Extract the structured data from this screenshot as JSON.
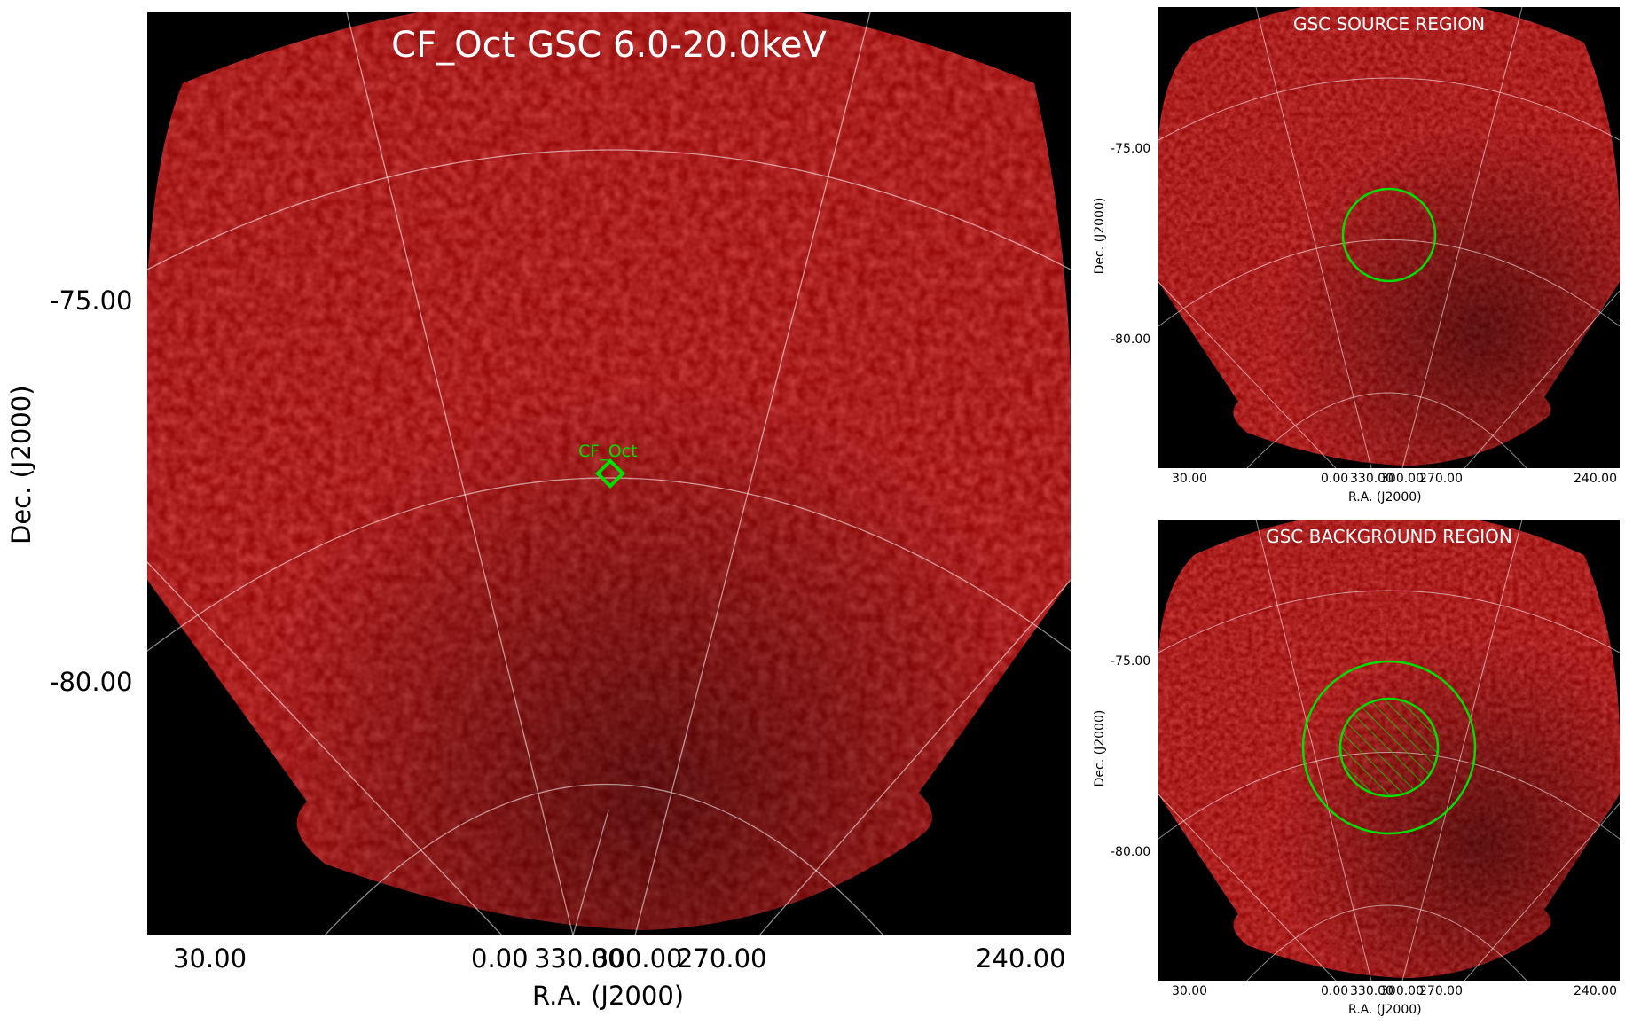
{
  "main": {
    "title": "CF_Oct GSC 6.0-20.0keV",
    "source_label": "CF_Oct",
    "xlabel": "R.A. (J2000)",
    "ylabel": "Dec. (J2000)",
    "xticks": [
      "30.00",
      "0.00",
      "330.00",
      "300.00",
      "270.00",
      "240.00"
    ],
    "yticks": [
      "-75.00",
      "-80.00"
    ]
  },
  "source_panel": {
    "title": "GSC SOURCE REGION",
    "xlabel": "R.A. (J2000)",
    "ylabel": "Dec. (J2000)",
    "xticks": [
      "30.00",
      "0.00",
      "330.00",
      "300.00",
      "270.00",
      "240.00"
    ],
    "yticks": [
      "-75.00",
      "-80.00"
    ]
  },
  "background_panel": {
    "title": "GSC BACKGROUND REGION",
    "xlabel": "R.A. (J2000)",
    "ylabel": "Dec. (J2000)",
    "xticks": [
      "30.00",
      "0.00",
      "330.00",
      "300.00",
      "270.00",
      "240.00"
    ],
    "yticks": [
      "-75.00",
      "-80.00"
    ]
  },
  "colors": {
    "image_red": "#b01010",
    "region_green": "#00e000",
    "grid_white": "#ffffff",
    "background": "#000000"
  }
}
